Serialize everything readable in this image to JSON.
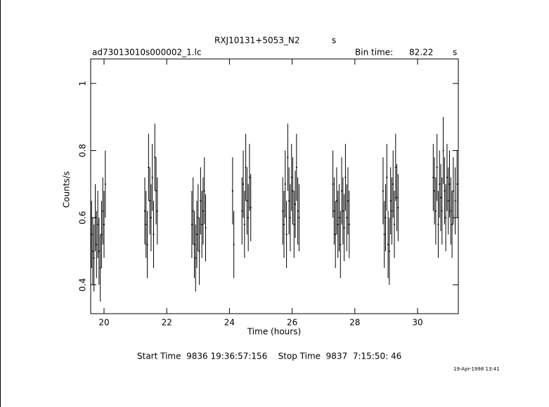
{
  "chart_data": {
    "type": "scatter",
    "title": "RXJ10131+5053_N2",
    "title_unit": "s",
    "file": "ad73013010s000002_1.lc",
    "bin_time_label": "Bin time:",
    "bin_time": 82.22,
    "bin_time_unit": "s",
    "xlabel": "Time (hours)",
    "ylabel": "Counts/s",
    "footer": "Start Time  9836 19:36:57:156    Stop Time  9837  7:15:50: 46",
    "date": "19-Apr-1998 13:41",
    "xlim": [
      19.574,
      31.3
    ],
    "ylim": [
      0.314,
      1.073
    ],
    "xticks": [
      20,
      22,
      24,
      26,
      28,
      30
    ],
    "yticks": [
      0.4,
      0.6,
      0.8,
      1
    ],
    "color": "#000000",
    "error": 0.1,
    "x": [
      19.6,
      19.64,
      19.68,
      19.72,
      19.76,
      19.8,
      19.84,
      19.88,
      19.92,
      19.96,
      20.0,
      20.04,
      21.3,
      21.34,
      21.38,
      21.42,
      21.46,
      21.5,
      21.54,
      21.58,
      21.62,
      21.66,
      21.7,
      22.8,
      22.84,
      22.88,
      22.92,
      22.96,
      23.0,
      23.04,
      23.08,
      23.12,
      23.16,
      23.2,
      23.24,
      24.1,
      24.14,
      24.4,
      24.44,
      24.48,
      24.52,
      24.56,
      24.6,
      24.64,
      24.68,
      25.7,
      25.74,
      25.78,
      25.82,
      25.86,
      25.9,
      25.94,
      25.98,
      26.02,
      26.06,
      26.1,
      26.14,
      26.18,
      26.22,
      27.3,
      27.34,
      27.38,
      27.42,
      27.46,
      27.5,
      27.54,
      27.58,
      27.62,
      27.66,
      27.7,
      27.74,
      27.78,
      27.82,
      28.9,
      28.94,
      28.98,
      29.02,
      29.06,
      29.1,
      29.14,
      29.18,
      29.22,
      29.26,
      29.3,
      29.34,
      29.38,
      30.5,
      30.54,
      30.58,
      30.62,
      30.66,
      30.7,
      30.74,
      30.78,
      30.82,
      30.86,
      30.9,
      30.94,
      30.98,
      31.02,
      31.06,
      31.1,
      31.14,
      31.2,
      31.26
    ],
    "values": [
      0.55,
      0.5,
      0.48,
      0.6,
      0.52,
      0.58,
      0.5,
      0.45,
      0.55,
      0.62,
      0.58,
      0.7,
      0.62,
      0.58,
      0.52,
      0.75,
      0.65,
      0.6,
      0.72,
      0.55,
      0.78,
      0.68,
      0.62,
      0.58,
      0.62,
      0.52,
      0.48,
      0.55,
      0.6,
      0.5,
      0.65,
      0.58,
      0.62,
      0.68,
      0.57,
      0.68,
      0.52,
      0.62,
      0.7,
      0.58,
      0.75,
      0.65,
      0.6,
      0.72,
      0.63,
      0.62,
      0.58,
      0.7,
      0.55,
      0.78,
      0.65,
      0.6,
      0.72,
      0.68,
      0.58,
      0.64,
      0.75,
      0.62,
      0.6,
      0.7,
      0.62,
      0.55,
      0.65,
      0.58,
      0.6,
      0.52,
      0.68,
      0.62,
      0.57,
      0.72,
      0.6,
      0.65,
      0.58,
      0.68,
      0.55,
      0.6,
      0.72,
      0.52,
      0.5,
      0.65,
      0.62,
      0.7,
      0.58,
      0.75,
      0.66,
      0.63,
      0.72,
      0.68,
      0.62,
      0.75,
      0.58,
      0.7,
      0.66,
      0.62,
      0.8,
      0.68,
      0.6,
      0.72,
      0.65,
      0.7,
      0.62,
      0.58,
      0.68,
      0.65,
      0.7
    ]
  }
}
